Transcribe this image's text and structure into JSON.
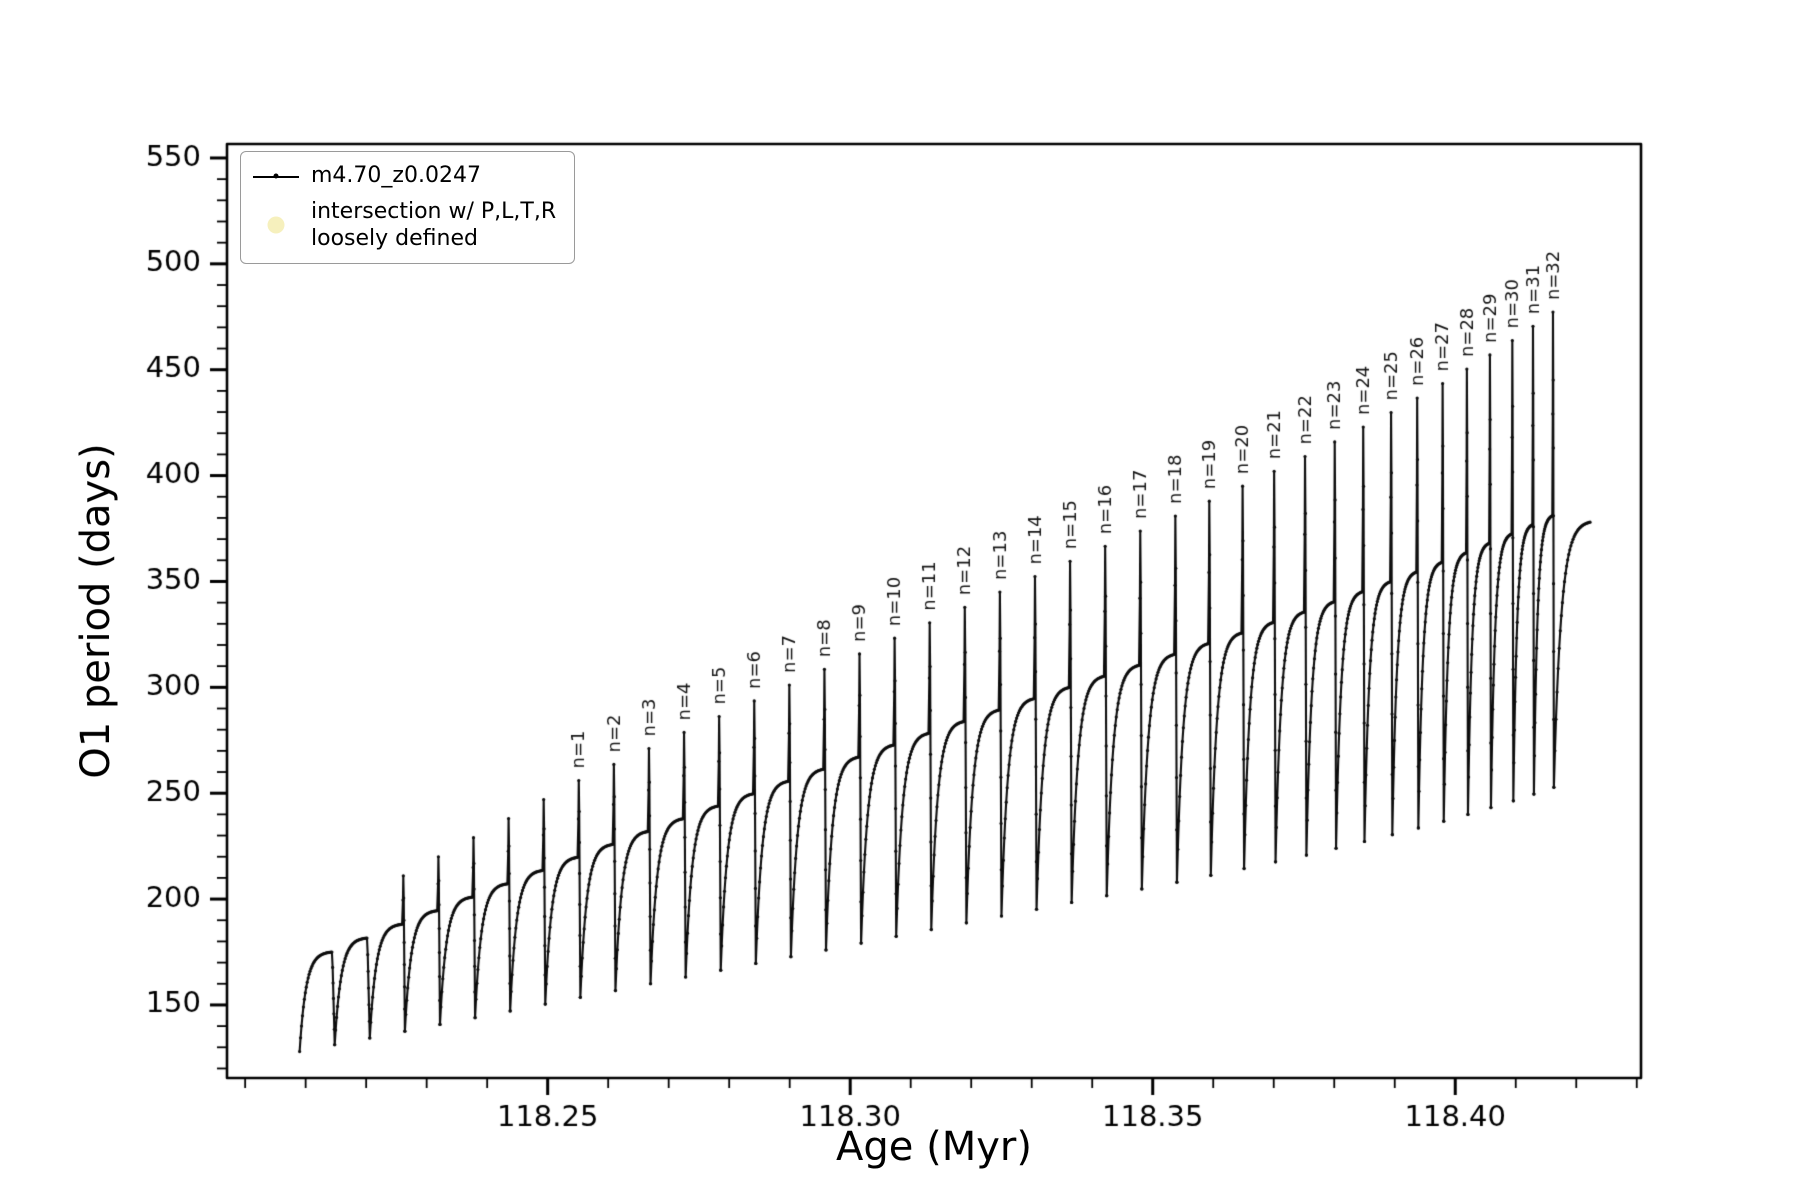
{
  "figure": {
    "bg": "#ffffff"
  },
  "legend": {
    "series_label": "m4.70_z0.0247",
    "intersection_label_line1": "intersection w/ P,L,T,R",
    "intersection_label_line2": "loosely defined",
    "intersection_marker_color": "#f6f0bd",
    "line_marker_color": "#000000"
  },
  "chart_data": {
    "type": "line",
    "title": "",
    "xlabel": "Age (Myr)",
    "ylabel": "O1 period (days)",
    "xlim": [
      118.197,
      118.4307
    ],
    "ylim": [
      115.5,
      556.6
    ],
    "xticks": [
      118.25,
      118.3,
      118.35,
      118.4
    ],
    "xtick_labels": [
      "118.25",
      "118.30",
      "118.35",
      "118.40"
    ],
    "yticks": [
      150,
      200,
      250,
      300,
      350,
      400,
      450,
      500,
      550
    ],
    "x_minor_step": 0.01,
    "y_minor_step": 10,
    "grid": false,
    "legend_position": "upper left",
    "line_color": "#0d0d0d",
    "series": [
      {
        "name": "m4.70_z0.0247"
      }
    ],
    "end_age": 118.4228,
    "cycles": [
      {
        "t0": 118.209,
        "min": 128.0,
        "top": 175.0,
        "spike": null,
        "label": null
      },
      {
        "t0": 118.2148,
        "min": 131.2,
        "top": 181.6,
        "spike": null,
        "label": null
      },
      {
        "t0": 118.2206,
        "min": 134.4,
        "top": 188.1,
        "spike": 211.0,
        "label": null
      },
      {
        "t0": 118.2264,
        "min": 137.6,
        "top": 194.5,
        "spike": 220.0,
        "label": null
      },
      {
        "t0": 118.2322,
        "min": 140.8,
        "top": 200.9,
        "spike": 229.0,
        "label": null
      },
      {
        "t0": 118.238,
        "min": 144.0,
        "top": 207.2,
        "spike": 238.0,
        "label": null
      },
      {
        "t0": 118.2438,
        "min": 147.2,
        "top": 213.5,
        "spike": 247.0,
        "label": null
      },
      {
        "t0": 118.2496,
        "min": 150.4,
        "top": 219.7,
        "spike": 256.0,
        "label": "n=1"
      },
      {
        "t0": 118.2554,
        "min": 153.6,
        "top": 225.8,
        "spike": 263.6,
        "label": "n=2"
      },
      {
        "t0": 118.2612,
        "min": 156.8,
        "top": 231.9,
        "spike": 271.1,
        "label": "n=3"
      },
      {
        "t0": 118.267,
        "min": 160.0,
        "top": 237.9,
        "spike": 278.7,
        "label": "n=4"
      },
      {
        "t0": 118.2728,
        "min": 163.2,
        "top": 243.9,
        "spike": 286.2,
        "label": "n=5"
      },
      {
        "t0": 118.2786,
        "min": 166.4,
        "top": 249.7,
        "spike": 293.6,
        "label": "n=6"
      },
      {
        "t0": 118.2844,
        "min": 169.6,
        "top": 255.6,
        "spike": 301.1,
        "label": "n=7"
      },
      {
        "t0": 118.2902,
        "min": 172.8,
        "top": 261.3,
        "spike": 308.5,
        "label": "n=8"
      },
      {
        "t0": 118.296,
        "min": 176.0,
        "top": 267.0,
        "spike": 315.8,
        "label": "n=9"
      },
      {
        "t0": 118.3018,
        "min": 179.2,
        "top": 272.7,
        "spike": 323.2,
        "label": "n=10"
      },
      {
        "t0": 118.3076,
        "min": 182.4,
        "top": 278.2,
        "spike": 330.5,
        "label": "n=11"
      },
      {
        "t0": 118.3134,
        "min": 185.6,
        "top": 283.8,
        "spike": 337.8,
        "label": "n=12"
      },
      {
        "t0": 118.3192,
        "min": 188.8,
        "top": 289.2,
        "spike": 345.0,
        "label": "n=13"
      },
      {
        "t0": 118.325,
        "min": 192.0,
        "top": 294.6,
        "spike": 352.3,
        "label": "n=14"
      },
      {
        "t0": 118.3308,
        "min": 195.2,
        "top": 299.9,
        "spike": 359.5,
        "label": "n=15"
      },
      {
        "t0": 118.3366,
        "min": 198.4,
        "top": 305.2,
        "spike": 366.6,
        "label": "n=16"
      },
      {
        "t0": 118.3424,
        "min": 201.6,
        "top": 310.4,
        "spike": 373.8,
        "label": "n=17"
      },
      {
        "t0": 118.3482,
        "min": 204.8,
        "top": 315.5,
        "spike": 380.9,
        "label": "n=18"
      },
      {
        "t0": 118.354,
        "min": 208.0,
        "top": 320.6,
        "spike": 387.9,
        "label": "n=19"
      },
      {
        "t0": 118.3596,
        "min": 211.2,
        "top": 325.6,
        "spike": 395.0,
        "label": "n=20"
      },
      {
        "t0": 118.3651,
        "min": 214.4,
        "top": 330.6,
        "spike": 402.0,
        "label": "n=21"
      },
      {
        "t0": 118.3703,
        "min": 217.6,
        "top": 335.5,
        "spike": 409.0,
        "label": "n=22"
      },
      {
        "t0": 118.3754,
        "min": 220.8,
        "top": 340.3,
        "spike": 415.9,
        "label": "n=23"
      },
      {
        "t0": 118.3803,
        "min": 224.0,
        "top": 345.1,
        "spike": 422.9,
        "label": "n=24"
      },
      {
        "t0": 118.385,
        "min": 227.2,
        "top": 349.8,
        "spike": 429.8,
        "label": "n=25"
      },
      {
        "t0": 118.3896,
        "min": 230.4,
        "top": 354.4,
        "spike": 436.6,
        "label": "n=26"
      },
      {
        "t0": 118.3939,
        "min": 233.6,
        "top": 359.0,
        "spike": 443.5,
        "label": "n=27"
      },
      {
        "t0": 118.3981,
        "min": 236.8,
        "top": 363.5,
        "spike": 450.3,
        "label": "n=28"
      },
      {
        "t0": 118.4021,
        "min": 240.0,
        "top": 368.0,
        "spike": 457.0,
        "label": "n=29"
      },
      {
        "t0": 118.4059,
        "min": 243.2,
        "top": 372.4,
        "spike": 463.8,
        "label": "n=30"
      },
      {
        "t0": 118.4096,
        "min": 246.4,
        "top": 376.7,
        "spike": 470.5,
        "label": "n=31"
      },
      {
        "t0": 118.413,
        "min": 249.6,
        "top": 381.0,
        "spike": 477.2,
        "label": "n=32"
      },
      {
        "t0": 118.4163,
        "min": 252.8,
        "top": 378.0,
        "spike": null,
        "label": null
      }
    ]
  }
}
